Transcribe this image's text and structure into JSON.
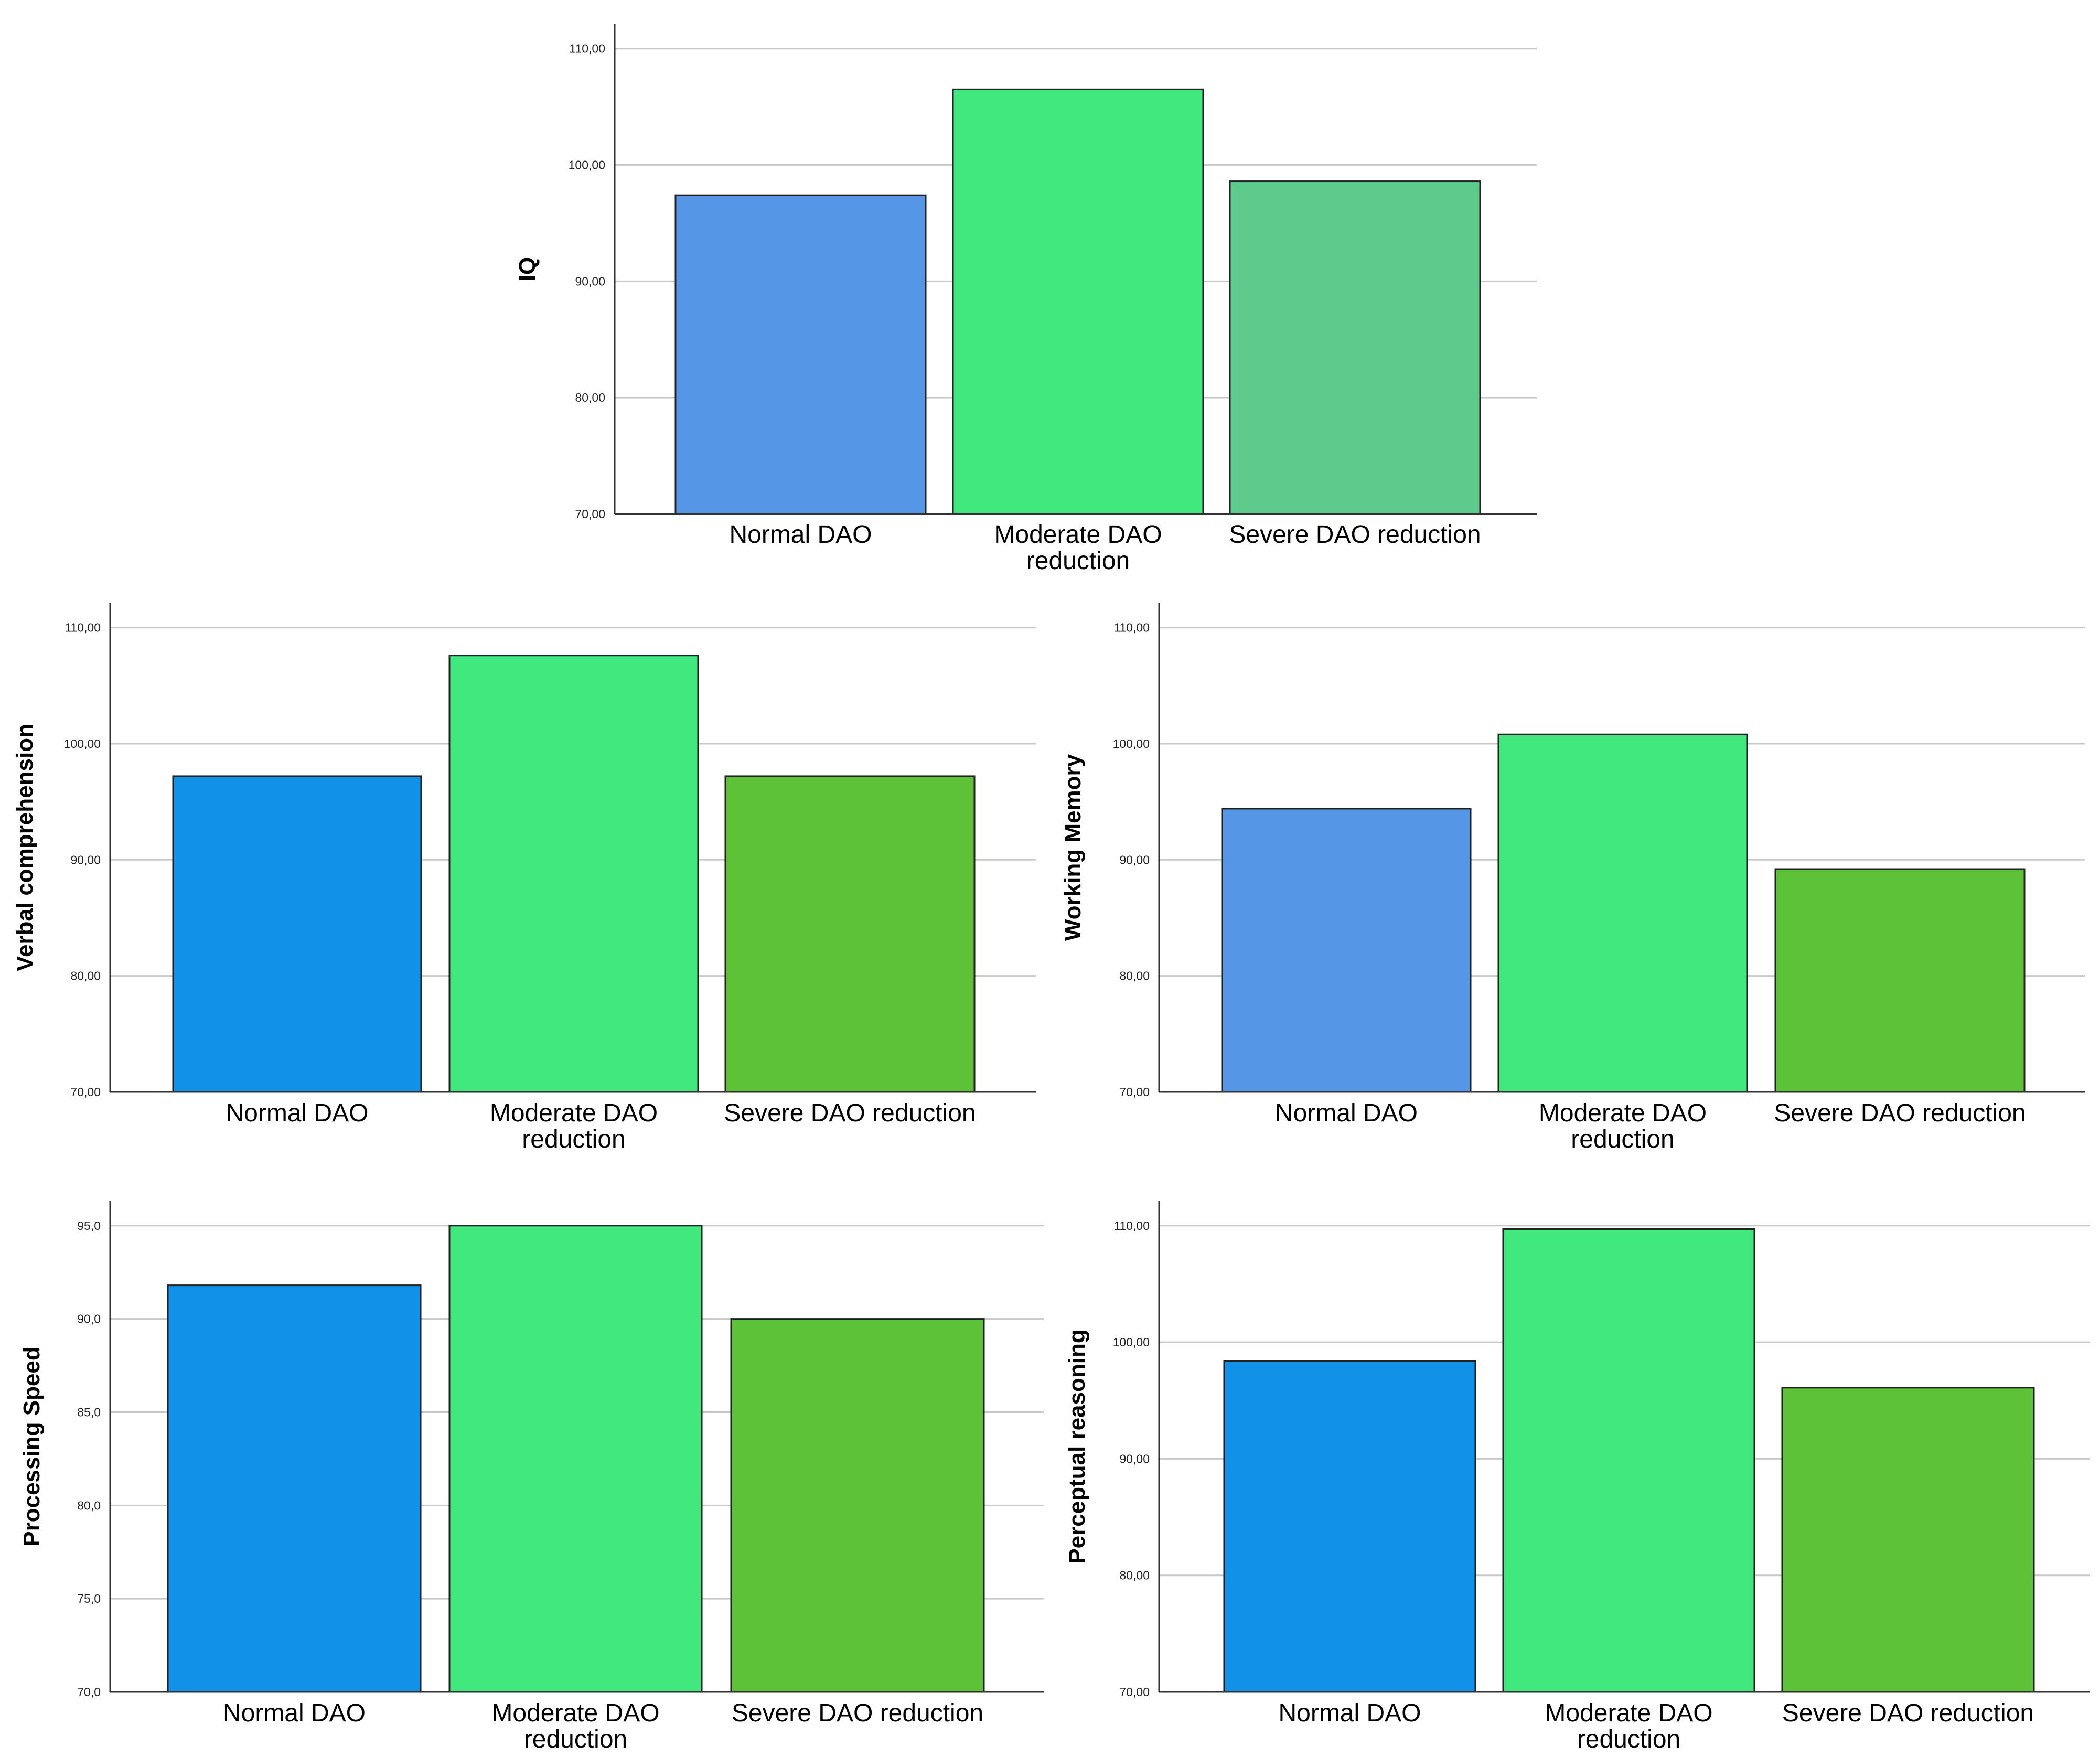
{
  "chart_data": [
    {
      "type": "bar",
      "ylabel": "IQ",
      "categories": [
        "Normal DAO",
        "Moderate DAO reduction",
        "Severe DAO reduction"
      ],
      "category_lines": [
        [
          "Normal DAO"
        ],
        [
          "Moderate DAO",
          "reduction"
        ],
        [
          "Severe DAO reduction"
        ]
      ],
      "values": [
        97.4,
        106.5,
        98.6
      ],
      "ylim": [
        70,
        110
      ],
      "yticks": [
        70,
        80,
        90,
        100,
        110
      ],
      "ytick_labels": [
        "70,00",
        "80,00",
        "90,00",
        "100,00",
        "110,00"
      ],
      "colors": [
        "#5596e6",
        "#41e87d",
        "#5ccb8b"
      ],
      "grid": true
    },
    {
      "type": "bar",
      "ylabel": "Verbal comprehension",
      "categories": [
        "Normal DAO",
        "Moderate DAO reduction",
        "Severe DAO reduction"
      ],
      "category_lines": [
        [
          "Normal DAO"
        ],
        [
          "Moderate DAO",
          "reduction"
        ],
        [
          "Severe DAO reduction"
        ]
      ],
      "values": [
        97.2,
        107.6,
        97.2
      ],
      "ylim": [
        70,
        110
      ],
      "yticks": [
        70,
        80,
        90,
        100,
        110
      ],
      "ytick_labels": [
        "70,00",
        "80,00",
        "90,00",
        "100,00",
        "110,00"
      ],
      "colors": [
        "#1192e8",
        "#41e87d",
        "#5dc238"
      ],
      "grid": true
    },
    {
      "type": "bar",
      "ylabel": "Working Memory",
      "categories": [
        "Normal DAO",
        "Moderate DAO reduction",
        "Severe DAO reduction"
      ],
      "category_lines": [
        [
          "Normal DAO"
        ],
        [
          "Moderate DAO",
          "reduction"
        ],
        [
          "Severe DAO reduction"
        ]
      ],
      "values": [
        94.4,
        100.8,
        89.2
      ],
      "ylim": [
        70,
        110
      ],
      "yticks": [
        70,
        80,
        90,
        100,
        110
      ],
      "ytick_labels": [
        "70,00",
        "80,00",
        "90,00",
        "100,00",
        "110,00"
      ],
      "colors": [
        "#5596e6",
        "#41e87d",
        "#5dc238"
      ],
      "grid": true
    },
    {
      "type": "bar",
      "ylabel": "Processing Speed",
      "categories": [
        "Normal DAO",
        "Moderate DAO reduction",
        "Severe DAO reduction"
      ],
      "category_lines": [
        [
          "Normal DAO"
        ],
        [
          "Moderate DAO",
          "reduction"
        ],
        [
          "Severe DAO reduction"
        ]
      ],
      "values": [
        91.8,
        95.0,
        90.0
      ],
      "ylim": [
        70,
        95
      ],
      "yticks": [
        70,
        75,
        80,
        85,
        90,
        95
      ],
      "ytick_labels": [
        "70,0",
        "75,0",
        "80,0",
        "85,0",
        "90,0",
        "95,0"
      ],
      "colors": [
        "#1192e8",
        "#41e87d",
        "#5dc238"
      ],
      "grid": true
    },
    {
      "type": "bar",
      "ylabel": "Perceptual reasoning",
      "categories": [
        "Normal DAO",
        "Moderate DAO reduction",
        "Severe DAO reduction"
      ],
      "category_lines": [
        [
          "Normal DAO"
        ],
        [
          "Moderate DAO",
          "reduction"
        ],
        [
          "Severe DAO reduction"
        ]
      ],
      "values": [
        98.4,
        109.7,
        96.1
      ],
      "ylim": [
        70,
        110
      ],
      "yticks": [
        70,
        80,
        90,
        100,
        110
      ],
      "ytick_labels": [
        "70,00",
        "80,00",
        "90,00",
        "100,00",
        "110,00"
      ],
      "colors": [
        "#1192e8",
        "#41e87d",
        "#5dc238"
      ],
      "grid": true
    }
  ]
}
